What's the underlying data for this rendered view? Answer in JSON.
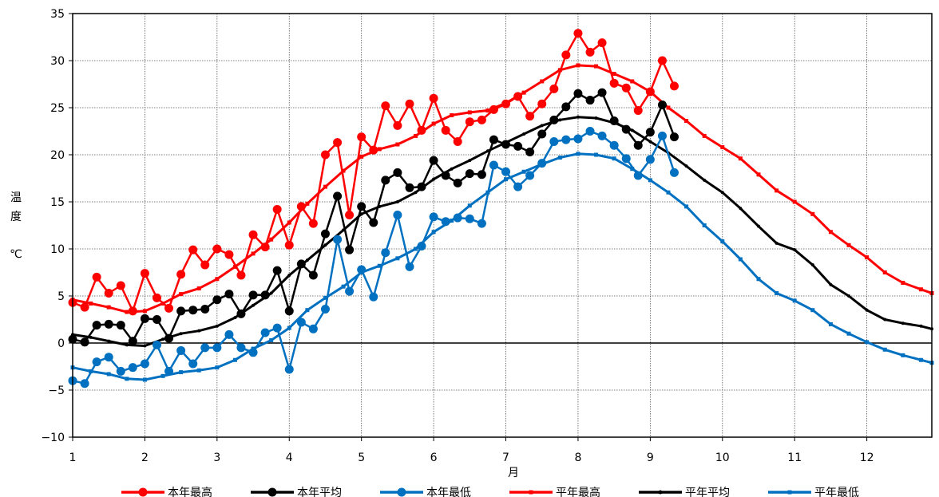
{
  "chart_data": {
    "type": "line",
    "xlabel": "月",
    "ylabel_chars": [
      "温",
      "度",
      "℃"
    ],
    "ylim": [
      -10,
      35
    ],
    "yticks": [
      -10,
      -5,
      0,
      5,
      10,
      15,
      20,
      25,
      30,
      35
    ],
    "ytick_labels": [
      "−10",
      "−5",
      "0",
      "5",
      "10",
      "15",
      "20",
      "25",
      "30",
      "35"
    ],
    "xlim": [
      1,
      12.9
    ],
    "xticks": [
      1,
      2,
      3,
      4,
      5,
      6,
      7,
      8,
      9,
      10,
      11,
      12
    ],
    "xtick_labels": [
      "1",
      "2",
      "3",
      "4",
      "5",
      "6",
      "7",
      "8",
      "9",
      "10",
      "11",
      "12"
    ],
    "grid": true,
    "legend_position": "bottom",
    "series": [
      {
        "name": "本年最高",
        "color": "#ff0000",
        "marker": "circle",
        "x": [
          1.0,
          1.167,
          1.333,
          1.5,
          1.667,
          1.833,
          2.0,
          2.167,
          2.333,
          2.5,
          2.667,
          2.833,
          3.0,
          3.167,
          3.333,
          3.5,
          3.667,
          3.833,
          4.0,
          4.167,
          4.333,
          4.5,
          4.667,
          4.833,
          5.0,
          5.167,
          5.333,
          5.5,
          5.667,
          5.833,
          6.0,
          6.167,
          6.333,
          6.5,
          6.667,
          6.833,
          7.0,
          7.167,
          7.333,
          7.5,
          7.667,
          7.833,
          8.0,
          8.167,
          8.333,
          8.5,
          8.667,
          8.833,
          9.0,
          9.167,
          9.333
        ],
        "y": [
          4.3,
          3.8,
          7.0,
          5.3,
          6.1,
          3.4,
          7.4,
          4.8,
          3.7,
          7.3,
          9.9,
          8.3,
          10.0,
          9.4,
          7.2,
          11.5,
          10.2,
          14.2,
          10.4,
          14.5,
          12.7,
          20.0,
          21.3,
          13.6,
          21.9,
          20.5,
          25.2,
          23.1,
          25.4,
          22.6,
          26.0,
          22.6,
          21.4,
          23.5,
          23.7,
          24.8,
          25.4,
          26.2,
          24.1,
          25.4,
          27.0,
          30.6,
          32.9,
          30.9,
          31.9,
          27.6,
          27.1,
          24.7,
          26.7,
          30.0,
          27.3
        ]
      },
      {
        "name": "本年平均",
        "color": "#000000",
        "marker": "circle",
        "x": [
          1.0,
          1.167,
          1.333,
          1.5,
          1.667,
          1.833,
          2.0,
          2.167,
          2.333,
          2.5,
          2.667,
          2.833,
          3.0,
          3.167,
          3.333,
          3.5,
          3.667,
          3.833,
          4.0,
          4.167,
          4.333,
          4.5,
          4.667,
          4.833,
          5.0,
          5.167,
          5.333,
          5.5,
          5.667,
          5.833,
          6.0,
          6.167,
          6.333,
          6.5,
          6.667,
          6.833,
          7.0,
          7.167,
          7.333,
          7.5,
          7.667,
          7.833,
          8.0,
          8.167,
          8.333,
          8.5,
          8.667,
          8.833,
          9.0,
          9.167,
          9.333
        ],
        "y": [
          0.4,
          0.1,
          1.9,
          2.0,
          1.9,
          0.2,
          2.6,
          2.5,
          0.5,
          3.4,
          3.5,
          3.6,
          4.6,
          5.2,
          3.1,
          5.1,
          5.1,
          7.7,
          3.4,
          8.4,
          7.2,
          11.6,
          15.6,
          9.9,
          14.5,
          12.8,
          17.3,
          18.1,
          16.5,
          16.6,
          19.4,
          17.8,
          17.0,
          18.0,
          17.9,
          21.6,
          21.1,
          20.9,
          20.3,
          22.2,
          23.7,
          25.1,
          26.5,
          25.8,
          26.6,
          23.6,
          22.7,
          21.0,
          22.4,
          25.3,
          21.9
        ]
      },
      {
        "name": "本年最低",
        "color": "#0070c0",
        "marker": "circle",
        "x": [
          1.0,
          1.167,
          1.333,
          1.5,
          1.667,
          1.833,
          2.0,
          2.167,
          2.333,
          2.5,
          2.667,
          2.833,
          3.0,
          3.167,
          3.333,
          3.5,
          3.667,
          3.833,
          4.0,
          4.167,
          4.333,
          4.5,
          4.667,
          4.833,
          5.0,
          5.167,
          5.333,
          5.5,
          5.667,
          5.833,
          6.0,
          6.167,
          6.333,
          6.5,
          6.667,
          6.833,
          7.0,
          7.167,
          7.333,
          7.5,
          7.667,
          7.833,
          8.0,
          8.167,
          8.333,
          8.5,
          8.667,
          8.833,
          9.0,
          9.167,
          9.333
        ],
        "y": [
          -4.0,
          -4.3,
          -2.0,
          -1.5,
          -3.0,
          -2.6,
          -2.2,
          -0.2,
          -3.0,
          -0.8,
          -2.2,
          -0.5,
          -0.5,
          0.9,
          -0.5,
          -1.0,
          1.1,
          1.6,
          -2.8,
          2.2,
          1.5,
          3.6,
          11.0,
          5.5,
          7.8,
          4.9,
          9.6,
          13.6,
          8.1,
          10.3,
          13.4,
          12.9,
          13.3,
          13.2,
          12.7,
          18.9,
          18.2,
          16.6,
          17.8,
          19.1,
          21.4,
          21.6,
          21.7,
          22.5,
          22.0,
          21.0,
          19.6,
          17.8,
          19.5,
          22.0,
          18.1
        ]
      },
      {
        "name": "平年最高",
        "color": "#ff0000",
        "marker": "square",
        "x": [
          1.0,
          1.25,
          1.5,
          1.75,
          2.0,
          2.25,
          2.5,
          2.75,
          3.0,
          3.25,
          3.5,
          3.75,
          4.0,
          4.25,
          4.5,
          4.75,
          5.0,
          5.25,
          5.5,
          5.75,
          6.0,
          6.25,
          6.5,
          6.75,
          7.0,
          7.25,
          7.5,
          7.75,
          8.0,
          8.25,
          8.5,
          8.75,
          9.0,
          9.25,
          9.5,
          9.75,
          10.0,
          10.25,
          10.5,
          10.75,
          11.0,
          11.25,
          11.5,
          11.75,
          12.0,
          12.25,
          12.5,
          12.75,
          12.9
        ],
        "y": [
          4.6,
          4.2,
          3.8,
          3.3,
          3.4,
          4.2,
          5.2,
          5.8,
          6.8,
          8.1,
          9.5,
          11.0,
          12.8,
          14.8,
          16.6,
          18.3,
          19.8,
          20.6,
          21.1,
          22.0,
          23.3,
          24.2,
          24.5,
          24.7,
          25.5,
          26.6,
          27.8,
          29.0,
          29.5,
          29.4,
          28.6,
          27.8,
          26.7,
          25.0,
          23.6,
          22.0,
          20.8,
          19.6,
          17.9,
          16.2,
          15.0,
          13.7,
          11.8,
          10.4,
          9.1,
          7.5,
          6.4,
          5.7,
          5.3
        ]
      },
      {
        "name": "平年平均",
        "color": "#000000",
        "marker": "small",
        "x": [
          1.0,
          1.25,
          1.5,
          1.75,
          2.0,
          2.25,
          2.5,
          2.75,
          3.0,
          3.25,
          3.5,
          3.75,
          4.0,
          4.25,
          4.5,
          4.75,
          5.0,
          5.25,
          5.5,
          5.75,
          6.0,
          6.25,
          6.5,
          6.75,
          7.0,
          7.25,
          7.5,
          7.75,
          8.0,
          8.25,
          8.5,
          8.75,
          9.0,
          9.25,
          9.5,
          9.75,
          10.0,
          10.25,
          10.5,
          10.75,
          11.0,
          11.25,
          11.5,
          11.75,
          12.0,
          12.25,
          12.5,
          12.75,
          12.9
        ],
        "y": [
          0.9,
          0.6,
          0.2,
          -0.2,
          -0.3,
          0.4,
          1.0,
          1.3,
          1.8,
          2.7,
          4.0,
          5.3,
          7.2,
          8.8,
          10.4,
          12.0,
          13.7,
          14.5,
          15.0,
          16.0,
          17.4,
          18.5,
          19.4,
          20.4,
          21.3,
          22.2,
          23.1,
          23.7,
          24.0,
          23.9,
          23.4,
          22.6,
          21.4,
          20.2,
          18.8,
          17.3,
          16.0,
          14.3,
          12.4,
          10.6,
          9.9,
          8.3,
          6.2,
          5.0,
          3.5,
          2.5,
          2.1,
          1.8,
          1.5
        ]
      },
      {
        "name": "平年最低",
        "color": "#0070c0",
        "marker": "square",
        "x": [
          1.0,
          1.25,
          1.5,
          1.75,
          2.0,
          2.25,
          2.5,
          2.75,
          3.0,
          3.25,
          3.5,
          3.75,
          4.0,
          4.25,
          4.5,
          4.75,
          5.0,
          5.25,
          5.5,
          5.75,
          6.0,
          6.25,
          6.5,
          6.75,
          7.0,
          7.25,
          7.5,
          7.75,
          8.0,
          8.25,
          8.5,
          8.75,
          9.0,
          9.25,
          9.5,
          9.75,
          10.0,
          10.25,
          10.5,
          10.75,
          11.0,
          11.25,
          11.5,
          11.75,
          12.0,
          12.25,
          12.5,
          12.75,
          12.9
        ],
        "y": [
          -2.6,
          -3.0,
          -3.3,
          -3.8,
          -3.9,
          -3.5,
          -3.1,
          -2.9,
          -2.6,
          -1.8,
          -0.6,
          0.3,
          1.6,
          3.5,
          4.8,
          6.0,
          7.5,
          8.2,
          9.0,
          10.0,
          11.8,
          13.0,
          14.6,
          16.0,
          17.4,
          18.2,
          19.0,
          19.7,
          20.1,
          20.0,
          19.6,
          18.5,
          17.3,
          16.0,
          14.5,
          12.5,
          10.8,
          8.9,
          6.8,
          5.3,
          4.5,
          3.5,
          2.0,
          1.0,
          0.1,
          -0.7,
          -1.3,
          -1.8,
          -2.1
        ]
      }
    ]
  },
  "legend": {
    "items": [
      "本年最高",
      "本年平均",
      "本年最低",
      "平年最高",
      "平年平均",
      "平年最低"
    ]
  }
}
